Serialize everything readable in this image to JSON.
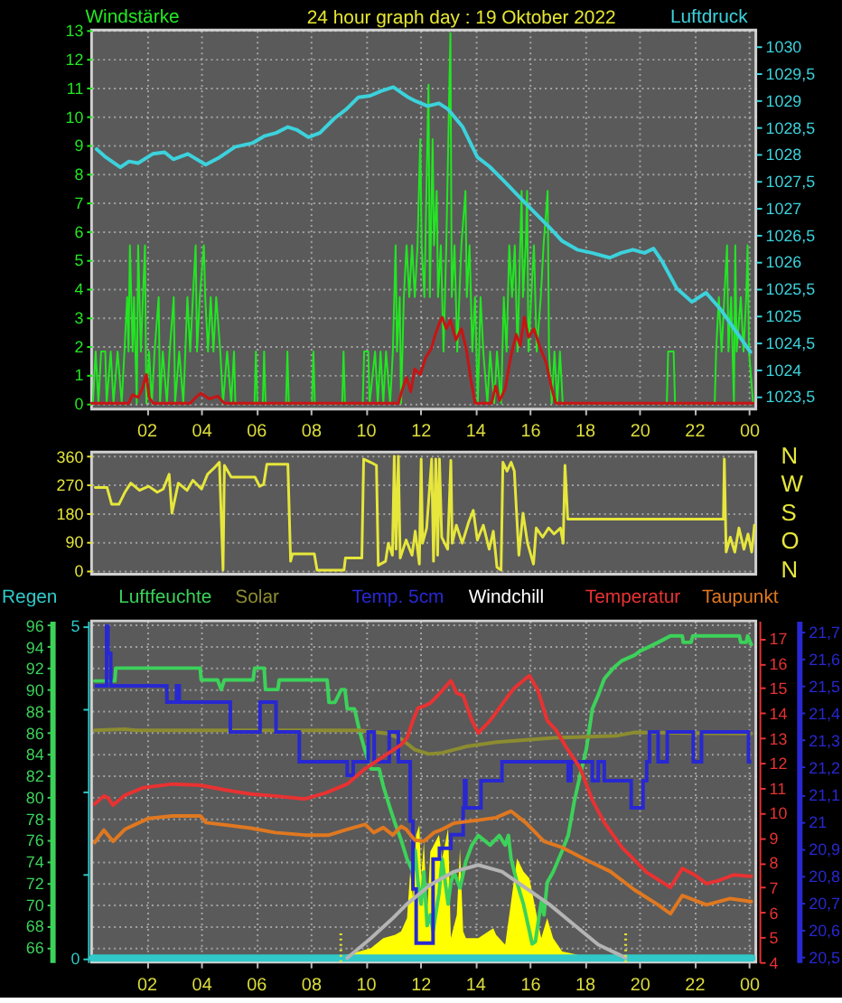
{
  "chart_data": [
    {
      "type": "line",
      "title": "24 hour graph day : 19 Oktober 2022",
      "ylabel": "Windstärke",
      "y2label": "Luftdruck",
      "xlim": [
        "2022-10-19T00:00",
        "2022-10-20T00:15"
      ],
      "xticks": [
        {
          "value": "2022-10-19T02:00",
          "label": "02"
        },
        {
          "value": "2022-10-19T04:00",
          "label": "04"
        },
        {
          "value": "2022-10-19T06:00",
          "label": "06"
        },
        {
          "value": "2022-10-19T08:00",
          "label": "08"
        },
        {
          "value": "2022-10-19T10:00",
          "label": "10"
        },
        {
          "value": "2022-10-19T12:00",
          "label": "12"
        },
        {
          "value": "2022-10-19T14:00",
          "label": "14"
        },
        {
          "value": "2022-10-19T16:00",
          "label": "16"
        },
        {
          "value": "2022-10-19T18:00",
          "label": "18"
        },
        {
          "value": "2022-10-19T20:00",
          "label": "20"
        },
        {
          "value": "2022-10-19T22:00",
          "label": "22"
        },
        {
          "value": "2022-10-20T00:00",
          "label": "00"
        }
      ],
      "ylim": [
        -0.2,
        13
      ],
      "yticks": [
        0,
        1,
        2,
        3,
        4,
        5,
        6,
        7,
        8,
        9,
        10,
        11,
        12,
        13
      ],
      "y2lim": [
        1023.26,
        1030.3
      ],
      "y2ticks": [
        {
          "value": 1023.5,
          "label": "1023,5"
        },
        1024,
        {
          "value": 1024.5,
          "label": "1024,5"
        },
        1025,
        {
          "value": 1025.5,
          "label": "1025,5"
        },
        1026,
        {
          "value": 1026.5,
          "label": "1026,5"
        },
        1027,
        {
          "value": 1027.5,
          "label": "1027,5"
        },
        1028,
        {
          "value": 1028.5,
          "label": "1028,5"
        },
        1029,
        {
          "value": 1029.5,
          "label": "1029,5"
        },
        1030
      ],
      "grid": true,
      "series": [
        {
          "color": "#22e622",
          "x": [
            "2022-10-19T00:03",
            "2022-10-19T00:09",
            "2022-10-19T00:15",
            "2022-10-19T00:21",
            "2022-10-19T00:30",
            "2022-10-19T00:33",
            "2022-10-19T00:42",
            "2022-10-19T00:48",
            "2022-10-19T00:57",
            "2022-10-19T01:06",
            "2022-10-19T01:12",
            "2022-10-19T01:18",
            "2022-10-19T01:21",
            "2022-10-19T01:24",
            "2022-10-19T01:30",
            "2022-10-19T01:33",
            "2022-10-19T01:39",
            "2022-10-19T01:42",
            "2022-10-19T01:48",
            "2022-10-19T01:57",
            "2022-10-19T02:00",
            "2022-10-19T02:06",
            "2022-10-19T02:12",
            "2022-10-19T02:18",
            "2022-10-19T02:27",
            "2022-10-19T02:30",
            "2022-10-19T02:36",
            "2022-10-19T02:45",
            "2022-10-19T02:51",
            "2022-10-19T03:00",
            "2022-10-19T03:03",
            "2022-10-19T03:12",
            "2022-10-19T03:21",
            "2022-10-19T03:30",
            "2022-10-19T03:36",
            "2022-10-19T03:42",
            "2022-10-19T03:48",
            "2022-10-19T03:51",
            "2022-10-19T03:57",
            "2022-10-19T04:06",
            "2022-10-19T04:09",
            "2022-10-19T04:15",
            "2022-10-19T04:21",
            "2022-10-19T04:27",
            "2022-10-19T04:33",
            "2022-10-19T04:42",
            "2022-10-19T04:48",
            "2022-10-19T04:57",
            "2022-10-19T05:06",
            "2022-10-19T05:12",
            "2022-10-19T05:15",
            "2022-10-19T05:57",
            "2022-10-19T06:00",
            "2022-10-19T06:03",
            "2022-10-19T06:15",
            "2022-10-19T06:18",
            "2022-10-19T06:21",
            "2022-10-19T07:06",
            "2022-10-19T07:09",
            "2022-10-19T07:12",
            "2022-10-19T08:03",
            "2022-10-19T08:06",
            "2022-10-19T08:09",
            "2022-10-19T09:09",
            "2022-10-19T09:12",
            "2022-10-19T09:15",
            "2022-10-19T09:54",
            "2022-10-19T09:57",
            "2022-10-19T10:06",
            "2022-10-19T10:09",
            "2022-10-19T10:21",
            "2022-10-19T10:27",
            "2022-10-19T10:33",
            "2022-10-19T10:39",
            "2022-10-19T10:45",
            "2022-10-19T10:54",
            "2022-10-19T11:00",
            "2022-10-19T11:06",
            "2022-10-19T11:09",
            "2022-10-19T11:15",
            "2022-10-19T11:18",
            "2022-10-19T11:24",
            "2022-10-19T11:30",
            "2022-10-19T11:36",
            "2022-10-19T11:42",
            "2022-10-19T11:48",
            "2022-10-19T11:54",
            "2022-10-19T12:00",
            "2022-10-19T12:03",
            "2022-10-19T12:09",
            "2022-10-19T12:18",
            "2022-10-19T12:21",
            "2022-10-19T12:27",
            "2022-10-19T12:30",
            "2022-10-19T12:36",
            "2022-10-19T12:39",
            "2022-10-19T12:45",
            "2022-10-19T12:51",
            "2022-10-19T12:57",
            "2022-10-19T13:06",
            "2022-10-19T13:09",
            "2022-10-19T13:15",
            "2022-10-19T13:21",
            "2022-10-19T13:30",
            "2022-10-19T13:39",
            "2022-10-19T13:42",
            "2022-10-19T13:48",
            "2022-10-19T13:54",
            "2022-10-19T14:00",
            "2022-10-19T14:06",
            "2022-10-19T14:12",
            "2022-10-19T14:18",
            "2022-10-19T14:27",
            "2022-10-19T14:33",
            "2022-10-19T14:42",
            "2022-10-19T14:48",
            "2022-10-19T14:57",
            "2022-10-19T15:03",
            "2022-10-19T15:09",
            "2022-10-19T15:15",
            "2022-10-19T15:21",
            "2022-10-19T15:27",
            "2022-10-19T15:33",
            "2022-10-19T15:42",
            "2022-10-19T15:45",
            "2022-10-19T15:51",
            "2022-10-19T15:54",
            "2022-10-19T15:57",
            "2022-10-19T16:03",
            "2022-10-19T16:09",
            "2022-10-19T16:15",
            "2022-10-19T16:24",
            "2022-10-19T16:30",
            "2022-10-19T16:39",
            "2022-10-19T16:42",
            "2022-10-19T16:48",
            "2022-10-19T16:54",
            "2022-10-19T17:00",
            "2022-10-19T17:06",
            "2022-10-19T17:12",
            "2022-10-19T21:00",
            "2022-10-19T21:03",
            "2022-10-19T21:15",
            "2022-10-19T21:18",
            "2022-10-19T22:45",
            "2022-10-19T22:48",
            "2022-10-19T22:54",
            "2022-10-19T23:00",
            "2022-10-19T23:06",
            "2022-10-19T23:12",
            "2022-10-19T23:15",
            "2022-10-19T23:21",
            "2022-10-19T23:27",
            "2022-10-19T23:30",
            "2022-10-19T23:33",
            "2022-10-19T23:42",
            "2022-10-19T23:48",
            "2022-10-19T23:54",
            "2022-10-19T23:57",
            "2022-10-20T00:00",
            "2022-10-20T00:09"
          ],
          "values": [
            0,
            1.8,
            0,
            1.8,
            1.8,
            0,
            1.8,
            0,
            1.8,
            0,
            1.8,
            3.7,
            1.8,
            5.5,
            1.8,
            3.7,
            0,
            5.5,
            1.8,
            5.5,
            0,
            1.8,
            0,
            1.8,
            3.7,
            0,
            1.8,
            0,
            1.8,
            3.7,
            0,
            1.8,
            0,
            3.7,
            1.8,
            3.7,
            5.5,
            1.8,
            3.7,
            5.5,
            3.7,
            1.8,
            3.7,
            1.8,
            3.7,
            1.8,
            0,
            1.8,
            0,
            1.8,
            0,
            0,
            1.8,
            0,
            0,
            1.8,
            0,
            0,
            1.8,
            0,
            0,
            1.8,
            0,
            0,
            1.8,
            0,
            0,
            1.8,
            1.8,
            0,
            1.8,
            0,
            1.8,
            0,
            1.8,
            0,
            1.8,
            5.5,
            1.8,
            3.7,
            0,
            3.7,
            5.5,
            3.7,
            5.5,
            3.7,
            5.5,
            9.2,
            5.5,
            3.7,
            11.1,
            3.7,
            9.2,
            5.5,
            7.4,
            3.7,
            5.5,
            1.8,
            5.5,
            12.9,
            3.7,
            5.5,
            1.8,
            5.5,
            7.4,
            3.7,
            5.5,
            1.8,
            3.7,
            0,
            3.7,
            1.8,
            0,
            1.8,
            0,
            1.8,
            0,
            3.7,
            1.8,
            5.5,
            3.7,
            5.5,
            1.8,
            7.4,
            3.7,
            5.5,
            7.4,
            1.8,
            3.7,
            5.5,
            1.8,
            3.7,
            5.5,
            7.4,
            1.8,
            0,
            1.8,
            0,
            1.8,
            0,
            0,
            1.8,
            1.8,
            0,
            0,
            1.8,
            3.7,
            1.8,
            3.7,
            5.5,
            1.8,
            3.7,
            0,
            5.5,
            1.8,
            3.7,
            1.8,
            3.7,
            5.5,
            1.8,
            0
          ]
        },
        {
          "color": "#c81414",
          "x": [
            "2022-10-19T00:00",
            "2022-10-19T01:21",
            "2022-10-19T01:30",
            "2022-10-19T01:42",
            "2022-10-19T01:51",
            "2022-10-19T02:00",
            "2022-10-19T02:06",
            "2022-10-19T02:15",
            "2022-10-19T03:36",
            "2022-10-19T03:48",
            "2022-10-19T04:00",
            "2022-10-19T04:18",
            "2022-10-19T04:36",
            "2022-10-19T04:51",
            "2022-10-19T11:12",
            "2022-10-19T11:21",
            "2022-10-19T11:30",
            "2022-10-19T11:39",
            "2022-10-19T11:48",
            "2022-10-19T12:00",
            "2022-10-19T12:12",
            "2022-10-19T12:24",
            "2022-10-19T12:33",
            "2022-10-19T12:42",
            "2022-10-19T12:48",
            "2022-10-19T12:57",
            "2022-10-19T13:06",
            "2022-10-19T13:18",
            "2022-10-19T13:30",
            "2022-10-19T13:42",
            "2022-10-19T13:51",
            "2022-10-19T14:00",
            "2022-10-19T14:36",
            "2022-10-19T14:45",
            "2022-10-19T14:54",
            "2022-10-19T15:06",
            "2022-10-19T15:18",
            "2022-10-19T15:30",
            "2022-10-19T15:39",
            "2022-10-19T15:48",
            "2022-10-19T15:57",
            "2022-10-19T16:09",
            "2022-10-19T16:21",
            "2022-10-19T16:36",
            "2022-10-19T16:48",
            "2022-10-19T16:57",
            "2022-10-20T00:09"
          ],
          "values": [
            0,
            0,
            0.3,
            0.2,
            0.5,
            1.0,
            0.2,
            0,
            0,
            0.2,
            0.35,
            0.15,
            0.25,
            0,
            0,
            0.5,
            0.9,
            0.4,
            1.2,
            1.0,
            1.6,
            1.9,
            2.4,
            2.8,
            3.0,
            2.6,
            2.9,
            2.2,
            2.6,
            1.8,
            0.8,
            0,
            0,
            0.6,
            0.1,
            0.5,
            1.6,
            2.4,
            2.0,
            3.0,
            2.3,
            2.6,
            2.0,
            1.4,
            0.5,
            0,
            0
          ]
        },
        {
          "color": "#3cd2dc",
          "axis": "y2",
          "x": [
            "2022-10-19T00:11",
            "2022-10-19T00:31",
            "2022-10-19T01:03",
            "2022-10-19T01:22",
            "2022-10-19T01:42",
            "2022-10-19T02:14",
            "2022-10-19T02:40",
            "2022-10-19T02:59",
            "2022-10-19T03:31",
            "2022-10-19T04:10",
            "2022-10-19T04:41",
            "2022-10-19T05:14",
            "2022-10-19T05:52",
            "2022-10-19T06:18",
            "2022-10-19T06:44",
            "2022-10-19T07:10",
            "2022-10-19T07:29",
            "2022-10-19T07:55",
            "2022-10-19T08:20",
            "2022-10-19T08:52",
            "2022-10-19T09:18",
            "2022-10-19T09:44",
            "2022-10-19T10:10",
            "2022-10-19T10:35",
            "2022-10-19T11:01",
            "2022-10-19T11:34",
            "2022-10-19T11:50",
            "2022-10-19T12:16",
            "2022-10-19T12:41",
            "2022-10-19T13:01",
            "2022-10-19T13:33",
            "2022-10-19T14:05",
            "2022-10-19T14:31",
            "2022-10-19T15:03",
            "2022-10-19T15:35",
            "2022-10-19T16:07",
            "2022-10-19T16:40",
            "2022-10-19T17:11",
            "2022-10-19T17:44",
            "2022-10-19T18:16",
            "2022-10-19T18:55",
            "2022-10-19T19:20",
            "2022-10-19T19:46",
            "2022-10-19T20:11",
            "2022-10-19T20:31",
            "2022-10-19T20:50",
            "2022-10-19T21:22",
            "2022-10-19T21:55",
            "2022-10-19T22:26",
            "2022-10-19T22:59",
            "2022-10-19T23:31",
            "2022-10-20T00:03"
          ],
          "values": [
            1028.09,
            1027.94,
            1027.75,
            1027.86,
            1027.83,
            1028.0,
            1028.03,
            1027.9,
            1028.0,
            1027.8,
            1027.94,
            1028.13,
            1028.2,
            1028.33,
            1028.39,
            1028.5,
            1028.45,
            1028.31,
            1028.39,
            1028.66,
            1028.83,
            1029.05,
            1029.08,
            1029.17,
            1029.24,
            1029.05,
            1028.98,
            1028.89,
            1028.94,
            1028.83,
            1028.5,
            1027.94,
            1027.77,
            1027.5,
            1027.22,
            1026.94,
            1026.66,
            1026.38,
            1026.22,
            1026.16,
            1026.07,
            1026.16,
            1026.22,
            1026.16,
            1026.24,
            1026.0,
            1025.5,
            1025.25,
            1025.42,
            1025.1,
            1024.71,
            1024.32
          ]
        }
      ]
    },
    {
      "type": "line",
      "xlim": [
        "2022-10-19T00:00",
        "2022-10-20T00:15"
      ],
      "ylim": [
        -13,
        373
      ],
      "yticks": [
        0,
        90,
        180,
        270,
        360
      ],
      "annotations": [
        "N",
        "W",
        "S",
        "O",
        "N"
      ],
      "tick_labels": "y",
      "grid": "y",
      "series": [
        {
          "color": "#e6e63c",
          "x": [
            "2022-10-19T00:08",
            "2022-10-19T00:34",
            "2022-10-19T00:44",
            "2022-10-19T01:00",
            "2022-10-19T01:13",
            "2022-10-19T01:26",
            "2022-10-19T01:45",
            "2022-10-19T02:05",
            "2022-10-19T02:24",
            "2022-10-19T02:37",
            "2022-10-19T02:50",
            "2022-10-19T02:56",
            "2022-10-19T03:10",
            "2022-10-19T03:29",
            "2022-10-19T03:42",
            "2022-10-19T04:01",
            "2022-10-19T04:14",
            "2022-10-19T04:28",
            "2022-10-19T04:40",
            "2022-10-19T04:48",
            "2022-10-19T04:51",
            "2022-10-19T05:06",
            "2022-10-19T05:58",
            "2022-10-19T06:08",
            "2022-10-19T06:17",
            "2022-10-19T06:24",
            "2022-10-19T07:10",
            "2022-10-19T07:16",
            "2022-10-19T07:20",
            "2022-10-19T08:08",
            "2022-10-19T08:14",
            "2022-10-19T09:13",
            "2022-10-19T09:16",
            "2022-10-19T09:52",
            "2022-10-19T09:56",
            "2022-10-19T10:11",
            "2022-10-19T10:24",
            "2022-10-19T10:28",
            "2022-10-19T10:44",
            "2022-10-19T10:50",
            "2022-10-19T10:59",
            "2022-10-19T11:03",
            "2022-10-19T11:07",
            "2022-10-19T11:12",
            "2022-10-19T11:16",
            "2022-10-19T11:29",
            "2022-10-19T11:42",
            "2022-10-19T11:49",
            "2022-10-19T11:58",
            "2022-10-19T12:02",
            "2022-10-19T12:05",
            "2022-10-19T12:14",
            "2022-10-19T12:25",
            "2022-10-19T12:29",
            "2022-10-19T12:34",
            "2022-10-19T12:38",
            "2022-10-19T12:42",
            "2022-10-19T12:47",
            "2022-10-19T13:00",
            "2022-10-19T13:07",
            "2022-10-19T13:10",
            "2022-10-19T13:19",
            "2022-10-19T13:32",
            "2022-10-19T13:46",
            "2022-10-19T13:56",
            "2022-10-19T14:05",
            "2022-10-19T14:18",
            "2022-10-19T14:31",
            "2022-10-19T14:40",
            "2022-10-19T14:48",
            "2022-10-19T14:57",
            "2022-10-19T15:01",
            "2022-10-19T15:10",
            "2022-10-19T15:19",
            "2022-10-19T15:26",
            "2022-10-19T15:36",
            "2022-10-19T15:45",
            "2022-10-19T15:55",
            "2022-10-19T16:08",
            "2022-10-19T16:14",
            "2022-10-19T16:28",
            "2022-10-19T16:41",
            "2022-10-19T16:53",
            "2022-10-19T17:07",
            "2022-10-19T17:13",
            "2022-10-19T17:17",
            "2022-10-19T17:23",
            "2022-10-19T23:04",
            "2022-10-19T23:06",
            "2022-10-19T23:10",
            "2022-10-19T23:19",
            "2022-10-19T23:29",
            "2022-10-19T23:38",
            "2022-10-19T23:49",
            "2022-10-19T23:58",
            "2022-10-20T00:06",
            "2022-10-20T00:12"
          ],
          "values": [
            261,
            261,
            208,
            208,
            246,
            275,
            252,
            265,
            246,
            256,
            303,
            180,
            275,
            252,
            284,
            256,
            303,
            322,
            341,
            0,
            331,
            294,
            294,
            265,
            271,
            335,
            335,
            28,
            51,
            51,
            0,
            0,
            38,
            38,
            351,
            341,
            331,
            15,
            28,
            85,
            47,
            360,
            66,
            360,
            38,
            95,
            47,
            123,
            19,
            351,
            85,
            133,
            351,
            28,
            351,
            47,
            351,
            104,
            66,
            347,
            85,
            142,
            85,
            152,
            189,
            95,
            142,
            66,
            123,
            9,
            0,
            341,
            313,
            341,
            313,
            47,
            180,
            85,
            19,
            133,
            104,
            133,
            114,
            133,
            85,
            331,
            161,
            161,
            351,
            57,
            104,
            57,
            133,
            66,
            114,
            57,
            142
          ]
        }
      ]
    },
    {
      "type": "line",
      "legend": "top",
      "xlim": [
        "2022-10-19T00:00",
        "2022-10-20T00:15"
      ],
      "xticks": [
        {
          "value": "2022-10-19T02:00",
          "label": "02"
        },
        {
          "value": "2022-10-19T04:00",
          "label": "04"
        },
        {
          "value": "2022-10-19T06:00",
          "label": "06"
        },
        {
          "value": "2022-10-19T08:00",
          "label": "08"
        },
        {
          "value": "2022-10-19T10:00",
          "label": "10"
        },
        {
          "value": "2022-10-19T12:00",
          "label": "12"
        },
        {
          "value": "2022-10-19T14:00",
          "label": "14"
        },
        {
          "value": "2022-10-19T16:00",
          "label": "16"
        },
        {
          "value": "2022-10-19T18:00",
          "label": "18"
        },
        {
          "value": "2022-10-19T20:00",
          "label": "20"
        },
        {
          "value": "2022-10-19T22:00",
          "label": "22"
        },
        {
          "value": "2022-10-20T00:00",
          "label": "00"
        }
      ],
      "ylim": [
        -0.06,
        5.07
      ],
      "yticks": [
        0,
        {
          "value": 1.25,
          "label": null
        },
        {
          "value": 2.5,
          "label": null
        },
        {
          "value": 3.75,
          "label": null
        },
        5
      ],
      "grid": "x",
      "ref_lines": [
        {
          "axis": "x",
          "value": "2022-10-19T09:06",
          "color": "#e6e632",
          "line_style": "dotted"
        },
        {
          "axis": "x",
          "value": "2022-10-19T19:30",
          "color": "#e6e632",
          "line_style": "dotted"
        }
      ],
      "series": [
        {
          "name": "Regen",
          "color": "#30c8c8",
          "x": [
            "2022-10-19T00:03",
            "2022-10-20T00:06"
          ],
          "values": [
            0,
            0
          ]
        },
        {
          "type": "area",
          "color": "#ffff00",
          "x": [
            "2022-10-19T08:34",
            "2022-10-19T08:53",
            "2022-10-19T09:20",
            "2022-10-19T09:46",
            "2022-10-19T10:12",
            "2022-10-19T10:39",
            "2022-10-19T11:05",
            "2022-10-19T11:18",
            "2022-10-19T11:31",
            "2022-10-19T11:38",
            "2022-10-19T11:44",
            "2022-10-19T11:51",
            "2022-10-19T11:58",
            "2022-10-19T12:02",
            "2022-10-19T12:08",
            "2022-10-19T12:15",
            "2022-10-19T12:22",
            "2022-10-19T12:41",
            "2022-10-19T12:48",
            "2022-10-19T13:01",
            "2022-10-19T13:07",
            "2022-10-19T13:20",
            "2022-10-19T13:27",
            "2022-10-19T13:34",
            "2022-10-19T13:40",
            "2022-10-19T14:07",
            "2022-10-19T14:40",
            "2022-10-19T14:46",
            "2022-10-19T15:06",
            "2022-10-19T15:19",
            "2022-10-19T15:32",
            "2022-10-19T15:46",
            "2022-10-19T15:59",
            "2022-10-19T16:12",
            "2022-10-19T16:25",
            "2022-10-19T16:38",
            "2022-10-19T16:51",
            "2022-10-19T17:11",
            "2022-10-19T17:44",
            "2022-10-19T17:50"
          ],
          "values": [
            0,
            0,
            0.05,
            0.1,
            0.15,
            0.3,
            0.35,
            0.4,
            0.6,
            1.3,
            0.9,
            1.85,
            2.0,
            1.2,
            1.75,
            0.65,
            1.6,
            1.85,
            1.5,
            1.95,
            0.3,
            0.65,
            1.65,
            0.4,
            0.3,
            0.3,
            0.45,
            0.35,
            0.2,
            0.85,
            1.5,
            1.3,
            1.2,
            0.75,
            0.3,
            0.6,
            0.3,
            0.1,
            0.05,
            0
          ]
        },
        {
          "color": "#b4b4b4",
          "x": [
            "2022-10-19T09:20",
            "2022-10-19T10:12",
            "2022-10-19T11:00",
            "2022-10-19T11:29",
            "2022-10-19T12:22",
            "2022-10-19T13:14",
            "2022-10-19T14:07",
            "2022-10-19T14:59",
            "2022-10-19T15:52",
            "2022-10-19T16:44",
            "2022-10-19T17:37",
            "2022-10-19T18:30",
            "2022-10-19T19:16",
            "2022-10-19T19:30"
          ],
          "values": [
            0,
            0.3,
            0.6,
            0.8,
            1.1,
            1.3,
            1.4,
            1.3,
            1.05,
            0.8,
            0.5,
            0.2,
            0.05,
            0
          ]
        }
      ]
    },
    {
      "type": "line",
      "legend": "top",
      "tick_labels": "y",
      "xlim": [
        "2022-10-19T00:00",
        "2022-10-20T00:15"
      ],
      "ylim": [
        64.6,
        96.4
      ],
      "yticks": [
        66,
        68,
        70,
        72,
        74,
        76,
        78,
        80,
        82,
        84,
        86,
        88,
        90,
        92,
        94,
        96
      ],
      "y2lim": [
        4,
        17.7
      ],
      "y2ticks": [
        4,
        5,
        6,
        7,
        8,
        9,
        10,
        11,
        12,
        13,
        14,
        15,
        16,
        17
      ],
      "y3lim": [
        20.48,
        21.74
      ],
      "y3ticks": [
        {
          "value": 20.5,
          "label": "20,5"
        },
        {
          "value": 20.6,
          "label": "20,6"
        },
        {
          "value": 20.7,
          "label": "20,7"
        },
        {
          "value": 20.8,
          "label": "20,8"
        },
        {
          "value": 20.9,
          "label": "20,9"
        },
        21,
        {
          "value": 21.1,
          "label": "21,1"
        },
        {
          "value": 21.2,
          "label": "21,2"
        },
        {
          "value": 21.3,
          "label": "21,3"
        },
        {
          "value": 21.4,
          "label": "21,4"
        },
        {
          "value": 21.5,
          "label": "21,5"
        },
        {
          "value": 21.6,
          "label": "21,6"
        },
        {
          "value": 21.7,
          "label": "21,7"
        }
      ],
      "grid": "y",
      "series": [
        {
          "name": "Luftfeuchte",
          "color": "#3cd25a",
          "x": [
            "2022-10-19T00:07",
            "2022-10-19T00:51",
            "2022-10-19T00:53",
            "2022-10-19T03:58",
            "2022-10-19T04:00",
            "2022-10-19T04:36",
            "2022-10-19T04:44",
            "2022-10-19T04:51",
            "2022-10-19T05:54",
            "2022-10-19T05:57",
            "2022-10-19T06:18",
            "2022-10-19T06:21",
            "2022-10-19T06:48",
            "2022-10-19T06:51",
            "2022-10-19T08:36",
            "2022-10-19T08:40",
            "2022-10-19T08:53",
            "2022-10-19T09:07",
            "2022-10-19T09:15",
            "2022-10-19T09:20",
            "2022-10-19T09:36",
            "2022-10-19T09:46",
            "2022-10-19T09:59",
            "2022-10-19T10:12",
            "2022-10-19T10:30",
            "2022-10-19T10:39",
            "2022-10-19T10:52",
            "2022-10-19T11:05",
            "2022-10-19T11:18",
            "2022-10-19T11:31",
            "2022-10-19T11:44",
            "2022-10-19T11:49",
            "2022-10-19T11:55",
            "2022-10-19T12:02",
            "2022-10-19T12:08",
            "2022-10-19T12:15",
            "2022-10-19T12:22",
            "2022-10-19T12:28",
            "2022-10-19T12:41",
            "2022-10-19T12:48",
            "2022-10-19T13:01",
            "2022-10-19T13:07",
            "2022-10-19T13:14",
            "2022-10-19T13:27",
            "2022-10-19T13:40",
            "2022-10-19T13:53",
            "2022-10-19T14:07",
            "2022-10-19T14:33",
            "2022-10-19T14:53",
            "2022-10-19T15:06",
            "2022-10-19T15:13",
            "2022-10-19T15:19",
            "2022-10-19T15:32",
            "2022-10-19T15:46",
            "2022-10-19T15:59",
            "2022-10-19T16:05",
            "2022-10-19T16:12",
            "2022-10-19T16:25",
            "2022-10-19T16:31",
            "2022-10-19T16:38",
            "2022-10-19T16:51",
            "2022-10-19T17:11",
            "2022-10-19T17:24",
            "2022-10-19T17:37",
            "2022-10-19T17:50",
            "2022-10-19T18:04",
            "2022-10-19T18:17",
            "2022-10-19T18:30",
            "2022-10-19T18:43",
            "2022-10-19T19:03",
            "2022-10-19T19:22",
            "2022-10-19T19:49",
            "2022-10-19T20:02",
            "2022-10-19T20:22",
            "2022-10-19T20:41",
            "2022-10-19T21:08",
            "2022-10-19T21:34",
            "2022-10-19T21:36",
            "2022-10-19T21:53",
            "2022-10-19T21:57",
            "2022-10-19T23:39",
            "2022-10-19T23:42",
            "2022-10-19T23:54",
            "2022-10-19T23:57",
            "2022-10-20T00:05"
          ],
          "values": [
            90.8,
            90.8,
            92.0,
            92.0,
            90.9,
            90.9,
            90.0,
            90.9,
            90.9,
            92.0,
            92.0,
            90.0,
            90.0,
            90.9,
            90.9,
            88.8,
            88.8,
            90.0,
            90.0,
            88.2,
            88.2,
            86.3,
            84.3,
            82.6,
            82.6,
            81.0,
            79.2,
            77.5,
            76.0,
            74.2,
            73.0,
            75.0,
            72.0,
            70.0,
            73.0,
            68.0,
            69.0,
            67.5,
            71.0,
            74.2,
            70.0,
            72.0,
            73.0,
            71.5,
            74.0,
            75.5,
            76.4,
            75.5,
            76.4,
            75.5,
            76.4,
            74.2,
            72.0,
            70.0,
            67.5,
            66.3,
            66.5,
            70.2,
            69.0,
            72.0,
            73.0,
            75.0,
            76.4,
            79.5,
            82.0,
            84.5,
            88.2,
            89.5,
            91.0,
            92.0,
            92.7,
            93.2,
            93.6,
            94.0,
            94.4,
            95.0,
            95.0,
            94.4,
            94.4,
            95.0,
            95.0,
            94.4,
            94.4,
            95.0,
            94.2
          ]
        },
        {
          "name": "Solar",
          "color": "#8c8c30",
          "x": [
            "2022-10-19T00:07",
            "2022-10-19T01:12",
            "2022-10-19T01:36",
            "2022-10-19T09:48",
            "2022-10-19T10:48",
            "2022-10-19T11:18",
            "2022-10-19T11:48",
            "2022-10-19T12:18",
            "2022-10-19T12:48",
            "2022-10-19T13:42",
            "2022-10-19T14:48",
            "2022-10-19T16:54",
            "2022-10-19T19:12",
            "2022-10-19T19:48",
            "2022-10-20T00:05"
          ],
          "values": [
            86.2,
            86.3,
            86.2,
            86.2,
            85.9,
            85.4,
            84.4,
            84.0,
            84.1,
            84.7,
            85.1,
            85.5,
            85.7,
            86.0,
            85.9
          ]
        },
        {
          "name": "Temp. 5cm",
          "color": "#2828d2",
          "type": "step",
          "axis": "y3",
          "x": [
            "2022-10-19T00:07",
            "2022-10-19T00:33",
            "2022-10-19T00:36",
            "2022-10-19T00:42",
            "2022-10-19T02:45",
            "2022-10-19T03:06",
            "2022-10-19T03:12",
            "2022-10-19T05:04",
            "2022-10-19T06:09",
            "2022-10-19T06:44",
            "2022-10-19T07:35",
            "2022-10-19T09:20",
            "2022-10-19T09:33",
            "2022-10-19T10:06",
            "2022-10-19T10:19",
            "2022-10-19T10:52",
            "2022-10-19T11:12",
            "2022-10-19T11:38",
            "2022-10-19T11:44",
            "2022-10-19T11:51",
            "2022-10-19T12:28",
            "2022-10-19T12:42",
            "2022-10-19T13:07",
            "2022-10-19T13:34",
            "2022-10-19T13:37",
            "2022-10-19T13:40",
            "2022-10-19T14:13",
            "2022-10-19T14:59",
            "2022-10-19T17:24",
            "2022-10-19T17:30",
            "2022-10-19T18:17",
            "2022-10-19T18:30",
            "2022-10-19T18:43",
            "2022-10-19T19:42",
            "2022-10-19T20:08",
            "2022-10-19T20:16",
            "2022-10-19T20:22",
            "2022-10-19T20:41",
            "2022-10-19T21:01",
            "2022-10-19T21:58",
            "2022-10-19T22:16",
            "2022-10-19T23:59",
            "2022-10-20T00:05"
          ],
          "values": [
            21.5,
            21.72,
            21.62,
            21.5,
            21.44,
            21.5,
            21.44,
            21.33,
            21.44,
            21.33,
            21.22,
            21.17,
            21.22,
            21.33,
            21.22,
            21.33,
            21.22,
            21.0,
            20.75,
            20.55,
            20.86,
            20.9,
            20.95,
            21.05,
            21.15,
            21.05,
            21.15,
            21.22,
            21.15,
            21.22,
            21.15,
            21.22,
            21.15,
            21.05,
            21.15,
            21.22,
            21.33,
            21.22,
            21.33,
            21.22,
            21.33,
            21.22,
            21.22
          ]
        },
        {
          "name": "Windchill",
          "color": "#ffffff",
          "axis": "y2"
        },
        {
          "name": "Temperatur",
          "color": "#e83232",
          "axis": "y2",
          "x": [
            "2022-10-19T00:07",
            "2022-10-19T00:27",
            "2022-10-19T00:36",
            "2022-10-19T00:47",
            "2022-10-19T01:13",
            "2022-10-19T01:53",
            "2022-10-19T02:58",
            "2022-10-19T03:58",
            "2022-10-19T04:56",
            "2022-10-19T05:49",
            "2022-10-19T06:42",
            "2022-10-19T07:47",
            "2022-10-19T08:34",
            "2022-10-19T09:20",
            "2022-10-19T09:59",
            "2022-10-19T10:39",
            "2022-10-19T11:18",
            "2022-10-19T11:31",
            "2022-10-19T11:44",
            "2022-10-19T11:55",
            "2022-10-19T12:11",
            "2022-10-19T12:22",
            "2022-10-19T12:48",
            "2022-10-19T13:07",
            "2022-10-19T13:20",
            "2022-10-19T13:34",
            "2022-10-19T13:53",
            "2022-10-19T14:07",
            "2022-10-19T14:33",
            "2022-10-19T15:13",
            "2022-10-19T15:26",
            "2022-10-19T15:52",
            "2022-10-19T15:59",
            "2022-10-19T16:18",
            "2022-10-19T16:38",
            "2022-10-19T16:58",
            "2022-10-19T17:24",
            "2022-10-19T17:50",
            "2022-10-19T18:17",
            "2022-10-19T18:43",
            "2022-10-19T19:22",
            "2022-10-19T20:16",
            "2022-10-19T20:55",
            "2022-10-19T21:08",
            "2022-10-19T21:34",
            "2022-10-19T22:01",
            "2022-10-19T22:27",
            "2022-10-19T22:53",
            "2022-10-19T23:26",
            "2022-10-20T00:05"
          ],
          "values": [
            10.35,
            10.67,
            10.6,
            10.3,
            10.7,
            11.0,
            11.15,
            11.1,
            10.9,
            10.75,
            10.67,
            10.55,
            10.8,
            11.15,
            11.76,
            12.25,
            12.73,
            13.0,
            13.7,
            14.2,
            14.3,
            14.4,
            14.9,
            15.3,
            14.8,
            14.7,
            13.7,
            13.2,
            13.7,
            14.7,
            15.0,
            15.4,
            15.5,
            14.9,
            13.7,
            13.3,
            12.5,
            11.8,
            10.5,
            9.6,
            8.6,
            7.6,
            7.15,
            7.0,
            7.76,
            7.5,
            7.15,
            7.27,
            7.5,
            7.44
          ]
        },
        {
          "name": "Taupunkt",
          "color": "#e07820",
          "axis": "y2",
          "x": [
            "2022-10-19T00:07",
            "2022-10-19T00:27",
            "2022-10-19T00:47",
            "2022-10-19T01:13",
            "2022-10-19T02:05",
            "2022-10-19T02:58",
            "2022-10-19T03:58",
            "2022-10-19T04:11",
            "2022-10-19T05:49",
            "2022-10-19T06:42",
            "2022-10-19T07:47",
            "2022-10-19T08:40",
            "2022-10-19T09:20",
            "2022-10-19T09:59",
            "2022-10-19T10:18",
            "2022-10-19T10:39",
            "2022-10-19T11:00",
            "2022-10-19T11:18",
            "2022-10-19T11:29",
            "2022-10-19T11:48",
            "2022-10-19T12:08",
            "2022-10-19T12:30",
            "2022-10-19T12:48",
            "2022-10-19T13:14",
            "2022-10-19T14:07",
            "2022-10-19T14:46",
            "2022-10-19T15:19",
            "2022-10-19T15:52",
            "2022-10-19T16:31",
            "2022-10-19T17:11",
            "2022-10-19T18:04",
            "2022-10-19T18:56",
            "2022-10-19T19:49",
            "2022-10-19T20:41",
            "2022-10-19T21:08",
            "2022-10-19T21:34",
            "2022-10-19T22:27",
            "2022-10-19T23:19",
            "2022-10-20T00:05"
          ],
          "values": [
            8.8,
            9.3,
            8.85,
            9.33,
            9.77,
            9.87,
            9.87,
            9.6,
            9.38,
            9.2,
            9.1,
            9.1,
            9.33,
            9.53,
            9.2,
            9.4,
            9.1,
            9.45,
            9.33,
            8.9,
            8.85,
            9.2,
            9.33,
            9.58,
            9.7,
            9.8,
            10.06,
            9.58,
            8.85,
            8.6,
            8.1,
            7.64,
            6.9,
            6.3,
            5.94,
            6.67,
            6.3,
            6.55,
            6.43
          ]
        }
      ]
    }
  ]
}
